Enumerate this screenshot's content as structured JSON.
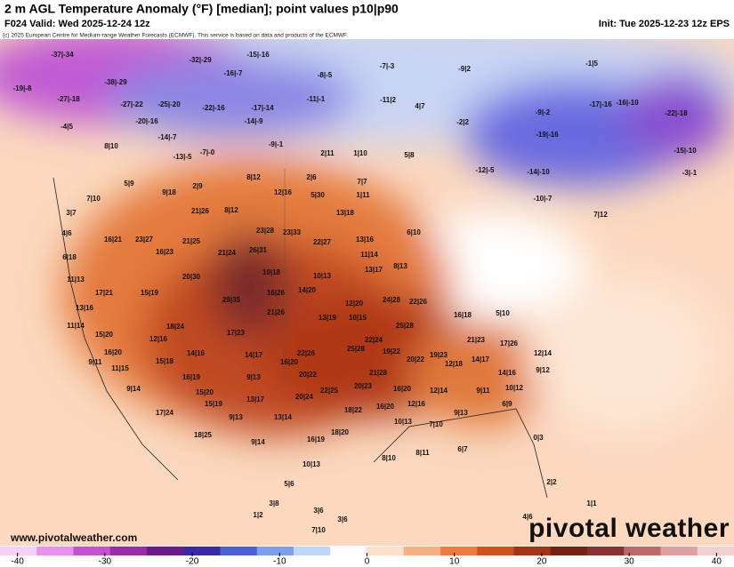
{
  "header": {
    "title": "2 m AGL Temperature Anomaly (°F) [median]; point values p10|p90",
    "valid": "F024 Valid: Wed 2025-12-24 12z",
    "init": "Init: Tue 2025-12-23 12z EPS",
    "copyright": "(c) 2025 European Centre for Medium-range Weather Forecasts (ECMWF). This service is based on data and products of the ECMWF."
  },
  "points": [
    "-37|-34",
    "-32|-29",
    "-15|-16",
    "-16|-7",
    "-38|-29",
    "-19|-8",
    "-8|-5",
    "-7|-3",
    "-9|2",
    "-1|5",
    "-27|-18",
    "-27|-22",
    "-25|-20",
    "-22|-16",
    "-17|-14",
    "-11|-1",
    "-11|2",
    "4|7",
    "-2|2",
    "-17|-16",
    "-16|-10",
    "-22|-18",
    "-9|-2",
    "-20|-16",
    "-14|-9",
    "-4|5",
    "-14|-7",
    "-9|-1",
    "8|10",
    "-13|-5",
    "-7|-0",
    "2|11",
    "1|10",
    "5|8",
    "-19|-16",
    "-15|-10",
    "-12|-5",
    "-14|-10",
    "-3|-1",
    "5|9",
    "9|18",
    "2|9",
    "8|12",
    "2|6",
    "7|7",
    "12|16",
    "5|30",
    "1|11",
    "-10|-7",
    "3|7",
    "7|10",
    "21|26",
    "8|12",
    "13|18",
    "7|12",
    "4|6",
    "16|21",
    "23|27",
    "21|25",
    "23|28",
    "23|33",
    "22|27",
    "13|16",
    "6|10",
    "6|18",
    "16|23",
    "21|24",
    "26|31",
    "11|14",
    "11|13",
    "20|30",
    "10|18",
    "10|13",
    "13|17",
    "8|13",
    "17|21",
    "15|19",
    "16|26",
    "14|20",
    "28|35",
    "12|20",
    "24|28",
    "22|26",
    "13|16",
    "21|26",
    "13|19",
    "10|15",
    "25|28",
    "16|18",
    "5|10",
    "11|14",
    "15|20",
    "18|24",
    "12|16",
    "17|23",
    "22|24",
    "21|23",
    "17|26",
    "16|20",
    "14|16",
    "14|17",
    "22|26",
    "25|28",
    "19|22",
    "9|11",
    "11|15",
    "15|18",
    "16|20",
    "20|22",
    "19|23",
    "12|18",
    "14|17",
    "12|14",
    "9|12",
    "16|19",
    "9|13",
    "20|22",
    "21|28",
    "14|16",
    "9|14",
    "15|20",
    "22|25",
    "20|23",
    "16|20",
    "12|14",
    "9|11",
    "10|12",
    "15|19",
    "13|17",
    "20|24",
    "6|9",
    "17|24",
    "9|13",
    "13|14",
    "18|22",
    "16|20",
    "12|16",
    "9|13",
    "10|13",
    "7|10",
    "18|25",
    "9|14",
    "18|20",
    "16|19",
    "8|10",
    "8|11",
    "6|7",
    "10|13",
    "5|6",
    "3|8",
    "1|2",
    "3|6",
    "3|6",
    "7|10",
    "4|6",
    "1|1",
    "2|2",
    "0|3"
  ],
  "colorbar": {
    "ticks": [
      -40,
      -30,
      -20,
      -10,
      0,
      10,
      20,
      30,
      40
    ],
    "lim": [
      -42,
      42
    ],
    "colors": [
      "#f6d0f6",
      "#e890ec",
      "#c850d0",
      "#9a2aa8",
      "#6a1a8a",
      "#3a2aa8",
      "#4a60d8",
      "#7ea0ec",
      "#c0d6f6",
      "#ffffff",
      "#fde0c8",
      "#f8b080",
      "#f07a3c",
      "#d4501c",
      "#a83214",
      "#7a2010",
      "#8a3030",
      "#c06868",
      "#e0a0a0",
      "#f4d0d0"
    ]
  },
  "footer": {
    "url": "www.pivotalweather.com",
    "logo": "pivotal weather"
  }
}
